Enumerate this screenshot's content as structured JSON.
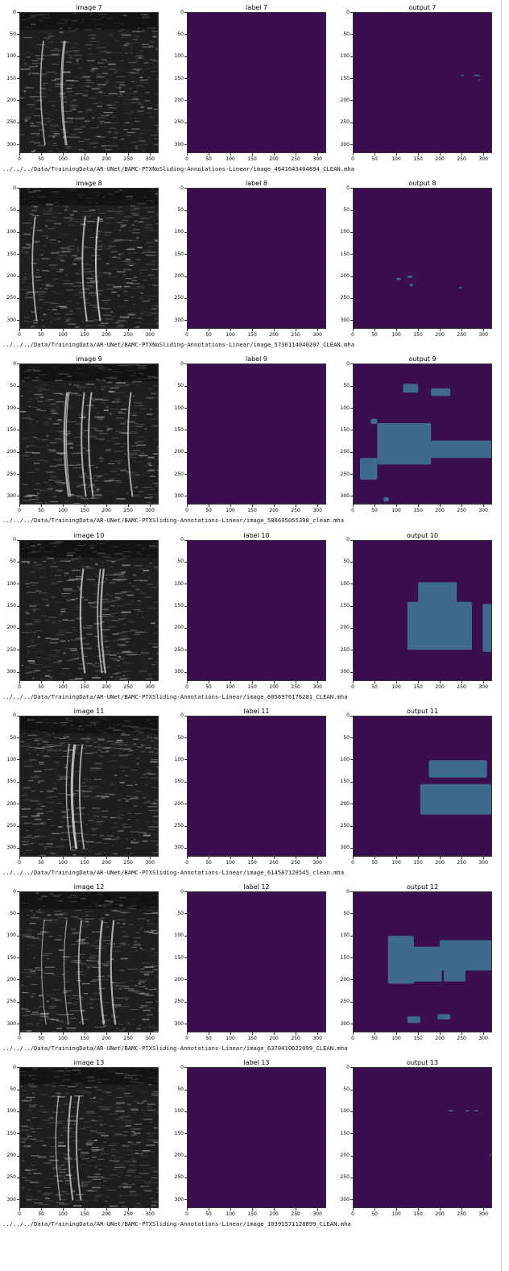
{
  "chart_data": {
    "type": "heatmap",
    "grid": false,
    "axis_ticks": [
      0,
      50,
      100,
      150,
      200,
      250,
      300
    ],
    "x_range": [
      0,
      320
    ],
    "y_range": [
      0,
      320
    ],
    "colors": {
      "background_class": "#3b0f4f",
      "positive_class": "#3d6a8e",
      "axis": "#333333"
    },
    "rows": [
      {
        "titles": [
          "image 7",
          "label 7",
          "output 7"
        ],
        "path": "../../../Data/TrainingData/AR-UNet/BAMC-PTXNoSliding-Annotations-Linear/image_4641643404894_CLEAN.mha",
        "output_regions": [
          {
            "x": 250,
            "y": 142,
            "w": 6,
            "h": 3
          },
          {
            "x": 280,
            "y": 142,
            "w": 14,
            "h": 3
          },
          {
            "x": 290,
            "y": 152,
            "w": 5,
            "h": 3
          }
        ]
      },
      {
        "titles": [
          "image 8",
          "label 8",
          "output 8"
        ],
        "path": "../../../Data/TrainingData/AR-UNet/BAMC-PTXNoSliding-Annotations-Linear/image_5736114040207_CLEAN.mha",
        "output_regions": [
          {
            "x": 100,
            "y": 205,
            "w": 10,
            "h": 5
          },
          {
            "x": 125,
            "y": 200,
            "w": 12,
            "h": 5
          },
          {
            "x": 130,
            "y": 218,
            "w": 8,
            "h": 6
          },
          {
            "x": 245,
            "y": 225,
            "w": 6,
            "h": 4
          }
        ]
      },
      {
        "titles": [
          "image 9",
          "label 9",
          "output 9"
        ],
        "path": "../../../Data/TrainingData/AR-UNet/BAMC-PTXSliding-Annotations-Linear/image_588695055398_clean.mha",
        "output_regions": [
          {
            "x": 115,
            "y": 45,
            "w": 35,
            "h": 20
          },
          {
            "x": 180,
            "y": 55,
            "w": 45,
            "h": 18
          },
          {
            "x": 40,
            "y": 125,
            "w": 15,
            "h": 12
          },
          {
            "x": 55,
            "y": 135,
            "w": 125,
            "h": 95
          },
          {
            "x": 160,
            "y": 175,
            "w": 160,
            "h": 40
          },
          {
            "x": 15,
            "y": 215,
            "w": 40,
            "h": 50
          },
          {
            "x": 70,
            "y": 305,
            "w": 12,
            "h": 10
          }
        ]
      },
      {
        "titles": [
          "image 10",
          "label 10",
          "output 10"
        ],
        "path": "../../../Data/TrainingData/AR-UNet/BAMC-PTXSliding-Annotations-Linear/image_6056976176281_CLEAN.mha",
        "output_regions": [
          {
            "x": 150,
            "y": 95,
            "w": 90,
            "h": 60
          },
          {
            "x": 125,
            "y": 140,
            "w": 150,
            "h": 110
          },
          {
            "x": 300,
            "y": 145,
            "w": 20,
            "h": 110
          }
        ]
      },
      {
        "titles": [
          "image 11",
          "label 11",
          "output 11"
        ],
        "path": "../../../Data/TrainingData/AR-UNet/BAMC-PTXSliding-Annotations-Linear/image_614587120545_clean.mha",
        "output_regions": [
          {
            "x": 175,
            "y": 100,
            "w": 135,
            "h": 40
          },
          {
            "x": 155,
            "y": 155,
            "w": 165,
            "h": 70
          }
        ]
      },
      {
        "titles": [
          "image 12",
          "label 12",
          "output 12"
        ],
        "path": "../../../Data/TrainingData/AR-UNet/BAMC-PTXSliding-Annotations-Linear/image_6370410622099_CLEAN.mha",
        "output_regions": [
          {
            "x": 80,
            "y": 100,
            "w": 60,
            "h": 110
          },
          {
            "x": 130,
            "y": 125,
            "w": 75,
            "h": 80
          },
          {
            "x": 200,
            "y": 110,
            "w": 120,
            "h": 70
          },
          {
            "x": 210,
            "y": 175,
            "w": 50,
            "h": 30
          },
          {
            "x": 125,
            "y": 285,
            "w": 30,
            "h": 15
          },
          {
            "x": 195,
            "y": 280,
            "w": 30,
            "h": 12
          }
        ]
      },
      {
        "titles": [
          "image 13",
          "label 13",
          "output 13"
        ],
        "path": "../../../Data/TrainingData/AR-UNet/BAMC-PTXSliding-Annotations-Linear/image_10391571128899_CLEAN.mha",
        "output_regions": [
          {
            "x": 220,
            "y": 97,
            "w": 12,
            "h": 3
          },
          {
            "x": 260,
            "y": 97,
            "w": 10,
            "h": 3
          },
          {
            "x": 280,
            "y": 97,
            "w": 10,
            "h": 3
          },
          {
            "x": 316,
            "y": 198,
            "w": 4,
            "h": 4
          }
        ]
      }
    ]
  }
}
